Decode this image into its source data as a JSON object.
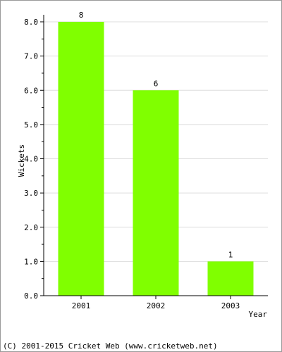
{
  "chart_data": {
    "type": "bar",
    "categories": [
      "2001",
      "2002",
      "2003"
    ],
    "values": [
      8,
      6,
      1
    ],
    "data_labels": [
      "8",
      "6",
      "1"
    ],
    "xlabel": "Year",
    "ylabel": "Wickets",
    "ylim": [
      0,
      8
    ],
    "yticks": [
      "0.0",
      "1.0",
      "2.0",
      "3.0",
      "4.0",
      "5.0",
      "6.0",
      "7.0",
      "8.0"
    ],
    "grid": true,
    "bar_color": "#80ff00",
    "grid_color": "#dddddd",
    "axis_color": "#000000"
  },
  "footer": "(C) 2001-2015 Cricket Web (www.cricketweb.net)"
}
